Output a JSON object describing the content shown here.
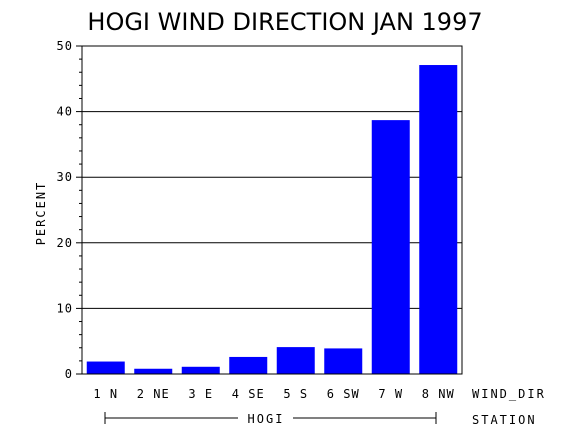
{
  "chart_data": {
    "type": "bar",
    "title": "HOGI WIND DIRECTION JAN 1997",
    "ylabel": "PERCENT",
    "xlabel": "WIND_DIR",
    "group_axis_label": "STATION",
    "group_label": "HOGI",
    "categories": [
      "1 N",
      "2 NE",
      "3 E",
      "4 SE",
      "5 S",
      "6 SW",
      "7 W",
      "8 NW"
    ],
    "values": [
      1.9,
      0.8,
      1.1,
      2.6,
      4.1,
      3.9,
      38.7,
      47.1
    ],
    "ylim": [
      0,
      50
    ],
    "yticks": [
      0,
      10,
      20,
      30,
      40,
      50
    ],
    "yticks_labels": [
      "0",
      "10",
      "20",
      "30",
      "40",
      "50"
    ],
    "grid": true,
    "bar_color": "#0000ff"
  }
}
